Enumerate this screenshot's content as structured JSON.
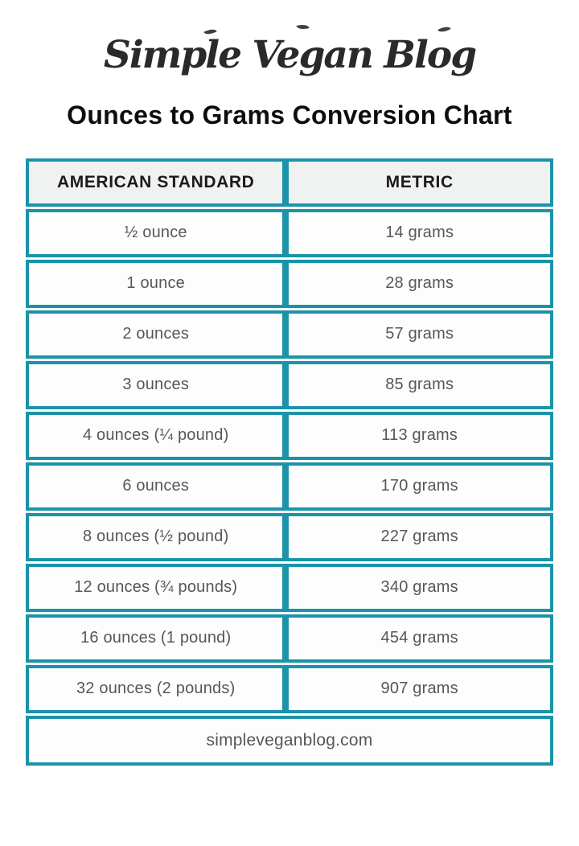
{
  "logo": {
    "text": "Simple Vegan Blog"
  },
  "title": "Ounces to Grams Conversion Chart",
  "table": {
    "headers": [
      "AMERICAN STANDARD",
      "METRIC"
    ],
    "rows": [
      [
        "½ ounce",
        "14 grams"
      ],
      [
        "1 ounce",
        "28 grams"
      ],
      [
        "2 ounces",
        "57 grams"
      ],
      [
        "3 ounces",
        "85 grams"
      ],
      [
        "4 ounces (¼ pound)",
        "113 grams"
      ],
      [
        "6 ounces",
        "170 grams"
      ],
      [
        "8 ounces (½ pound)",
        "227 grams"
      ],
      [
        "12 ounces (¾ pounds)",
        "340 grams"
      ],
      [
        "16 ounces (1 pound)",
        "454 grams"
      ],
      [
        "32 ounces (2 pounds)",
        "907 grams"
      ]
    ],
    "footer": "simpleveganblog.com"
  },
  "icons": {
    "logo_ornament": "leaf-icon"
  },
  "colors": {
    "accent_teal": "#1b93a8",
    "header_bg": "#f0f2f1",
    "cell_bg": "#fdfdfd",
    "header_text": "#1b1b1d",
    "cell_text": "#55575b",
    "title_text": "#0d0d0d",
    "logo_text": "#2a2a2c"
  },
  "chart_data": {
    "type": "table",
    "title": "Ounces to Grams Conversion Chart",
    "columns": [
      "AMERICAN STANDARD",
      "METRIC"
    ],
    "rows": [
      [
        "½ ounce",
        "14 grams"
      ],
      [
        "1 ounce",
        "28 grams"
      ],
      [
        "2 ounces",
        "57 grams"
      ],
      [
        "3 ounces",
        "85 grams"
      ],
      [
        "4 ounces (¼ pound)",
        "113 grams"
      ],
      [
        "6 ounces",
        "170 grams"
      ],
      [
        "8 ounces (½ pound)",
        "227 grams"
      ],
      [
        "12 ounces (¾ pounds)",
        "340 grams"
      ],
      [
        "16 ounces (1 pound)",
        "454 grams"
      ],
      [
        "32 ounces (2 pounds)",
        "907 grams"
      ]
    ],
    "footer": "simpleveganblog.com"
  }
}
